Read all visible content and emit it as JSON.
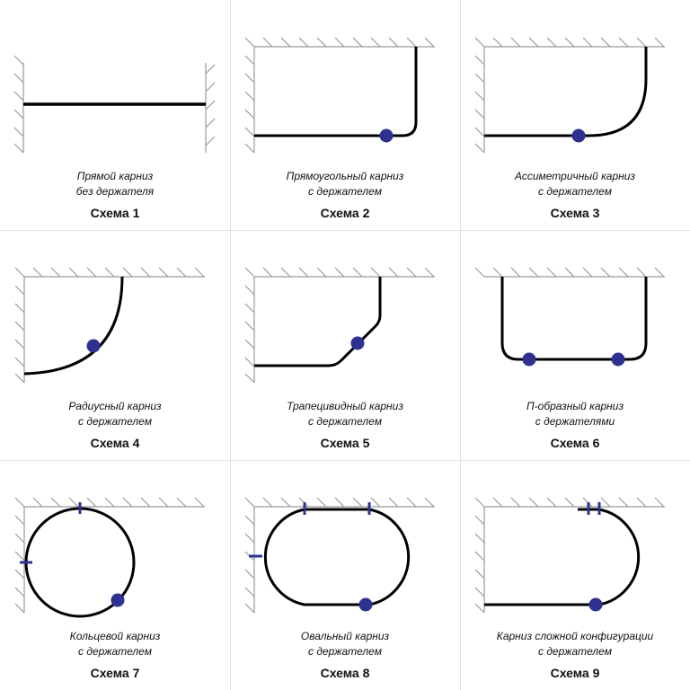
{
  "colors": {
    "rail": "#000000",
    "wall": "#9a9a9a",
    "holder": "#2e3190",
    "grid": "#e2e2e2"
  },
  "schemes": [
    {
      "caption_line1": "Прямой карниз",
      "caption_line2": "без держателя",
      "label": "Схема 1"
    },
    {
      "caption_line1": "Прямоугольный карниз",
      "caption_line2": "с держателем",
      "label": "Схема 2"
    },
    {
      "caption_line1": "Ассиметричный карниз",
      "caption_line2": "с держателем",
      "label": "Схема 3"
    },
    {
      "caption_line1": "Радиусный карниз",
      "caption_line2": "с держателем",
      "label": "Схема 4"
    },
    {
      "caption_line1": "Трапецивидный карниз",
      "caption_line2": "с держателем",
      "label": "Схема 5"
    },
    {
      "caption_line1": "П-образный карниз",
      "caption_line2": "с держателями",
      "label": "Схема 6"
    },
    {
      "caption_line1": "Кольцевой карниз",
      "caption_line2": "с держателем",
      "label": "Схема 7"
    },
    {
      "caption_line1": "Овальный карниз",
      "caption_line2": "с держателем",
      "label": "Схема 8"
    },
    {
      "caption_line1": "Карниз сложной конфигурации",
      "caption_line2": "с держателем",
      "label": "Схема 9"
    }
  ]
}
